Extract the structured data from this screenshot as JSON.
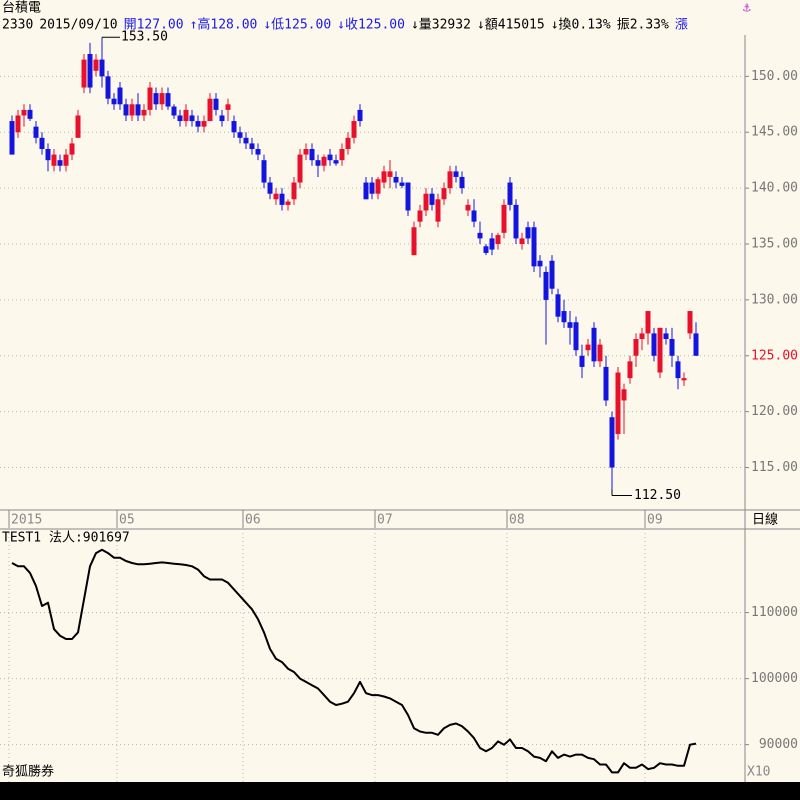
{
  "chart_data": [
    {
      "type": "candlestick",
      "title": "台積電",
      "header": [
        {
          "text": "2330",
          "color": "#000000"
        },
        {
          "text": "2015/09/10",
          "color": "#000000"
        },
        {
          "text": "開127.00",
          "color": "#1a1ae6"
        },
        {
          "text": "↑高128.00",
          "color": "#1a1ae6"
        },
        {
          "text": "↓低125.00",
          "color": "#1a1ae6"
        },
        {
          "text": "↓收125.00",
          "color": "#1a1ae6"
        },
        {
          "text": "↓量32932",
          "color": "#000000"
        },
        {
          "text": "↓額415015",
          "color": "#000000"
        },
        {
          "text": "↓換0.13%",
          "color": "#000000"
        },
        {
          "text": "振2.33%",
          "color": "#000000"
        },
        {
          "text": "漲",
          "color": "#1a1ae6"
        }
      ],
      "period_label": "日線",
      "up_color": "#e8102a",
      "down_color": "#1414e0",
      "categories": [
        "2015",
        null,
        null,
        null,
        null,
        null,
        null,
        null,
        null,
        null,
        null,
        null,
        null,
        null,
        null,
        null,
        null,
        null,
        "05",
        null,
        null,
        null,
        null,
        null,
        null,
        null,
        null,
        null,
        null,
        null,
        null,
        null,
        null,
        null,
        null,
        null,
        null,
        null,
        null,
        "06",
        null,
        null,
        null,
        null,
        null,
        null,
        null,
        null,
        null,
        null,
        null,
        null,
        null,
        null,
        null,
        null,
        null,
        null,
        null,
        null,
        null,
        "07",
        null,
        null,
        null,
        null,
        null,
        null,
        null,
        null,
        null,
        null,
        null,
        null,
        null,
        null,
        null,
        null,
        null,
        null,
        null,
        null,
        null,
        "08",
        null,
        null,
        null,
        null,
        null,
        null,
        null,
        null,
        null,
        null,
        null,
        null,
        null,
        null,
        null,
        null,
        null,
        null,
        null,
        null,
        null,
        null,
        "09",
        null,
        null,
        null,
        null,
        null,
        null,
        null
      ],
      "ohlc": [
        [
          146,
          146.5,
          143,
          143
        ],
        [
          145,
          147,
          144.5,
          146.5
        ],
        [
          146.5,
          147.5,
          145.5,
          147
        ],
        [
          147,
          147.5,
          146,
          146.2
        ],
        [
          145.5,
          146,
          144,
          144.5
        ],
        [
          144.5,
          145,
          143,
          143.5
        ],
        [
          143.5,
          144,
          141.5,
          142.5
        ],
        [
          142,
          143.5,
          141.5,
          143
        ],
        [
          142.5,
          143,
          141.5,
          142
        ],
        [
          142,
          143.5,
          141.5,
          143
        ],
        [
          143,
          144.5,
          142.5,
          144
        ],
        [
          144.5,
          147,
          144.5,
          146.5
        ],
        [
          149,
          152,
          148.5,
          151.5
        ],
        [
          152,
          153,
          148.5,
          149
        ],
        [
          150.5,
          152,
          150,
          151.5
        ],
        [
          151.5,
          153.5,
          149,
          150
        ],
        [
          150,
          150.5,
          147.5,
          148
        ],
        [
          148,
          148.5,
          147,
          147.5
        ],
        [
          149,
          149.5,
          147,
          147.5
        ],
        [
          147.5,
          148,
          146,
          146.5
        ],
        [
          146.5,
          148,
          146,
          147.5
        ],
        [
          147.5,
          148.5,
          146,
          146.5
        ],
        [
          146.5,
          147.5,
          146,
          147
        ],
        [
          147,
          149.5,
          146.5,
          149
        ],
        [
          148.5,
          149,
          147,
          147.5
        ],
        [
          147.5,
          149,
          147,
          148.5
        ],
        [
          148.5,
          149,
          147,
          147.3
        ],
        [
          147.3,
          147.5,
          146.2,
          146.5
        ],
        [
          146.5,
          147,
          145.5,
          146
        ],
        [
          146,
          147.5,
          145.5,
          147
        ],
        [
          146.5,
          147,
          145.5,
          146
        ],
        [
          146,
          146.5,
          145,
          145.5
        ],
        [
          145.5,
          146.5,
          145,
          146
        ],
        [
          146,
          148.5,
          146,
          148
        ],
        [
          148,
          148.5,
          146.5,
          147
        ],
        [
          146.5,
          147,
          145.5,
          146
        ],
        [
          147,
          148,
          146,
          147.5
        ],
        [
          146,
          146.5,
          144.5,
          145
        ],
        [
          145,
          145.5,
          144,
          144.5
        ],
        [
          144.5,
          145,
          143.5,
          144
        ],
        [
          144,
          144.5,
          143,
          143.5
        ],
        [
          143.5,
          144,
          142.5,
          143
        ],
        [
          142.5,
          143,
          140,
          140.5
        ],
        [
          140.5,
          141,
          139,
          139.5
        ],
        [
          139,
          140,
          138.5,
          139.5
        ],
        [
          139.5,
          140,
          138,
          138.5
        ],
        [
          138.5,
          139,
          138,
          138.8
        ],
        [
          139,
          141,
          138.5,
          140.5
        ],
        [
          140.5,
          143.5,
          140,
          143
        ],
        [
          143,
          144,
          142.5,
          143.5
        ],
        [
          143.5,
          144,
          142,
          142.5
        ],
        [
          142.5,
          143,
          141,
          142
        ],
        [
          142,
          143,
          141.5,
          142.8
        ],
        [
          143,
          143.5,
          142,
          142.5
        ],
        [
          142.5,
          143,
          142,
          142.2
        ],
        [
          142.5,
          144,
          142,
          143.5
        ],
        [
          143.5,
          145,
          143,
          144.5
        ],
        [
          144.5,
          146.5,
          144,
          146
        ],
        [
          147,
          147.5,
          145.5,
          146
        ],
        [
          140.5,
          141,
          139,
          139
        ],
        [
          140.5,
          141,
          139,
          139.5
        ],
        [
          139.5,
          141,
          139,
          140.8
        ],
        [
          140.5,
          142,
          140,
          141.5
        ],
        [
          141,
          142.5,
          140,
          141.5
        ],
        [
          141,
          141.5,
          140,
          140.5
        ],
        [
          140.5,
          141,
          140,
          140.2
        ],
        [
          140.5,
          140.5,
          137.5,
          138
        ],
        [
          134,
          137,
          134,
          136.5
        ],
        [
          137,
          138.5,
          136.5,
          138
        ],
        [
          138,
          140,
          137.5,
          139.5
        ],
        [
          139.5,
          140,
          138,
          138.5
        ],
        [
          137,
          139.5,
          136.5,
          139
        ],
        [
          139,
          140.5,
          138.5,
          140
        ],
        [
          140,
          142,
          139.5,
          141.5
        ],
        [
          141.5,
          142,
          140.5,
          141
        ],
        [
          141,
          141.5,
          139.5,
          140
        ],
        [
          138,
          139,
          137.5,
          138.5
        ],
        [
          138,
          139,
          136.5,
          137
        ],
        [
          136,
          137,
          135,
          135.5
        ],
        [
          134.8,
          135,
          134,
          134.2
        ],
        [
          135.5,
          136,
          134,
          134.5
        ],
        [
          135,
          136,
          134.5,
          135.8
        ],
        [
          136,
          139,
          135.5,
          138.5
        ],
        [
          140.5,
          141,
          138,
          138.5
        ],
        [
          138.5,
          139,
          135,
          135.5
        ],
        [
          135,
          136,
          134.5,
          135.5
        ],
        [
          136.5,
          137,
          135,
          135.5
        ],
        [
          136.5,
          137,
          132.5,
          133
        ],
        [
          133.5,
          134,
          132,
          133
        ],
        [
          132.5,
          133,
          126,
          130
        ],
        [
          133.5,
          134,
          130.5,
          131
        ],
        [
          130.5,
          131,
          128,
          128.5
        ],
        [
          129,
          130,
          127.5,
          128
        ],
        [
          128,
          129,
          126,
          127.5
        ],
        [
          128,
          128.5,
          125,
          125.5
        ],
        [
          125,
          126,
          123,
          124
        ],
        [
          125.5,
          126.5,
          125,
          126
        ],
        [
          127.5,
          128,
          124,
          124.5
        ],
        [
          124.5,
          126.5,
          124,
          126
        ],
        [
          124,
          125,
          120.5,
          121
        ],
        [
          119.5,
          120,
          112.5,
          115
        ],
        [
          118,
          124,
          117.5,
          123.5
        ],
        [
          121,
          122.5,
          118,
          122
        ],
        [
          123,
          125,
          122.5,
          124.5
        ],
        [
          125,
          127,
          124,
          126.5
        ],
        [
          126.5,
          127.5,
          125.5,
          127
        ],
        [
          127,
          129,
          126,
          129
        ],
        [
          127,
          127.5,
          124.5,
          125
        ],
        [
          123.5,
          127.5,
          123,
          127.5
        ],
        [
          127,
          127.5,
          126,
          126.5
        ],
        [
          126.5,
          127.5,
          124,
          125
        ],
        [
          124.5,
          125,
          122,
          123
        ],
        [
          122.8,
          123.5,
          122.3,
          123
        ],
        [
          127,
          129,
          126.5,
          129
        ],
        [
          127,
          128,
          125,
          125
        ]
      ],
      "ylim": [
        111.2,
        153.7
      ],
      "yticks": [
        {
          "value": 115,
          "label": "115.00"
        },
        {
          "value": 120,
          "label": "120.00"
        },
        {
          "value": 125,
          "label": "125.00"
        },
        {
          "value": 130,
          "label": "130.00"
        },
        {
          "value": 135,
          "label": "135.00"
        },
        {
          "value": 140,
          "label": "140.00"
        },
        {
          "value": 145,
          "label": "145.00"
        },
        {
          "value": 150,
          "label": "150.00"
        }
      ],
      "last_price": {
        "value": 125,
        "label": "125.00",
        "color": "#e8102a"
      },
      "high_label": {
        "value": 153.5,
        "label": "153.50"
      },
      "low_label": {
        "value": 112.5,
        "label": "112.50"
      },
      "grid": true
    },
    {
      "type": "line",
      "title": "TEST1 法人:901697",
      "color": "#000000",
      "values": [
        117500,
        117000,
        117000,
        116000,
        114000,
        111000,
        111500,
        107500,
        106500,
        106000,
        106000,
        107000,
        112000,
        117000,
        119000,
        119500,
        119000,
        118300,
        118300,
        117800,
        117500,
        117300,
        117300,
        117400,
        117500,
        117600,
        117500,
        117400,
        117300,
        117200,
        117000,
        116500,
        115500,
        115000,
        115000,
        115000,
        114500,
        113500,
        112500,
        111500,
        110500,
        109000,
        107000,
        104500,
        103000,
        102500,
        101500,
        101000,
        100000,
        99500,
        99000,
        98500,
        97500,
        96500,
        96000,
        96200,
        96500,
        97800,
        99500,
        97800,
        97500,
        97500,
        97300,
        97000,
        96500,
        96000,
        94500,
        92500,
        92000,
        91800,
        91800,
        91500,
        92500,
        93000,
        93200,
        92800,
        92000,
        91000,
        89500,
        89000,
        89500,
        90500,
        90000,
        90800,
        89500,
        89500,
        89000,
        88200,
        88000,
        87500,
        89000,
        88000,
        88500,
        88200,
        88500,
        88500,
        88000,
        87800,
        87000,
        87000,
        85800,
        85800,
        87200,
        86500,
        86500,
        87000,
        86300,
        86500,
        87200,
        87000,
        87000,
        86800,
        86800,
        90000,
        90170
      ],
      "ylim": [
        84350,
        122500
      ],
      "yticks": [
        90000,
        100000,
        110000
      ],
      "scale_label": "X10",
      "footer": "奇狐勝券",
      "grid": true
    }
  ]
}
